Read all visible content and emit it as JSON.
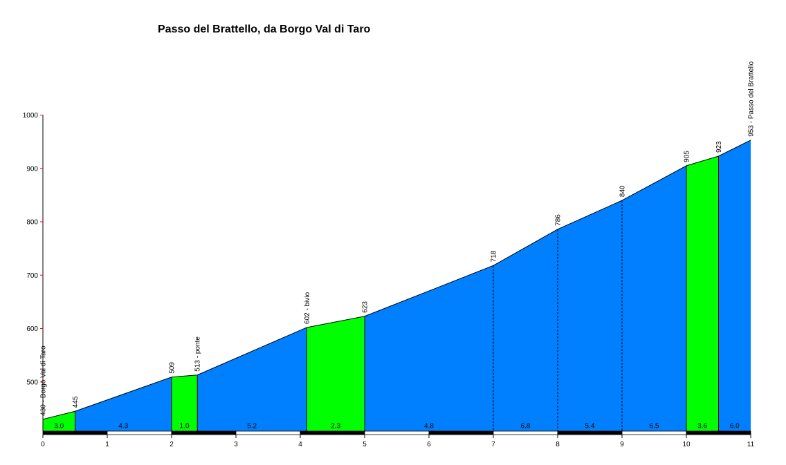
{
  "chart_data": {
    "type": "area",
    "title": "Passo del Brattello, da Borgo Val di Taro",
    "xlim": [
      0,
      11
    ],
    "ylim": [
      400,
      1000
    ],
    "x_ticks": [
      "0",
      "1",
      "2",
      "3",
      "4",
      "5",
      "6",
      "7",
      "8",
      "9",
      "10",
      "11"
    ],
    "y_ticks": [
      "500",
      "600",
      "700",
      "800",
      "900",
      "1000"
    ],
    "points": [
      {
        "x": 0,
        "y": 430,
        "label": "430 - Borgo Val di Taro"
      },
      {
        "x": 0.5,
        "y": 445,
        "label": "445"
      },
      {
        "x": 2,
        "y": 509,
        "label": "509"
      },
      {
        "x": 2.4,
        "y": 513,
        "label": "513 - ponte"
      },
      {
        "x": 4.1,
        "y": 602,
        "label": "602 - bivio"
      },
      {
        "x": 5,
        "y": 623,
        "label": "623"
      },
      {
        "x": 7,
        "y": 718,
        "label": "718"
      },
      {
        "x": 8,
        "y": 786,
        "label": "786"
      },
      {
        "x": 9,
        "y": 840,
        "label": "840"
      },
      {
        "x": 10,
        "y": 905,
        "label": "905"
      },
      {
        "x": 10.5,
        "y": 923,
        "label": "923"
      },
      {
        "x": 11,
        "y": 953,
        "label": "953 - Passo del Brattello"
      }
    ],
    "segments": [
      {
        "from": 0,
        "to": 0.5,
        "gradient": "3.0",
        "highlight": true
      },
      {
        "from": 0.5,
        "to": 2,
        "gradient": "4.3",
        "highlight": false
      },
      {
        "from": 2,
        "to": 2.4,
        "gradient": "1.0",
        "highlight": true
      },
      {
        "from": 2.4,
        "to": 4.1,
        "gradient": "5.2",
        "highlight": false
      },
      {
        "from": 4.1,
        "to": 5,
        "gradient": "2.3",
        "highlight": true
      },
      {
        "from": 5,
        "to": 7,
        "gradient": "4.8",
        "highlight": false
      },
      {
        "from": 7,
        "to": 8,
        "gradient": "6.8",
        "highlight": false
      },
      {
        "from": 8,
        "to": 9,
        "gradient": "5.4",
        "highlight": false
      },
      {
        "from": 9,
        "to": 10,
        "gradient": "6.5",
        "highlight": false
      },
      {
        "from": 10,
        "to": 10.5,
        "gradient": "3.6",
        "highlight": true
      },
      {
        "from": 10.5,
        "to": 11,
        "gradient": "6.0",
        "highlight": false
      }
    ],
    "colors": {
      "fill": "#0080ff",
      "highlight": "#00ff00",
      "axis": "#000000",
      "tick": "#ff0000"
    }
  }
}
